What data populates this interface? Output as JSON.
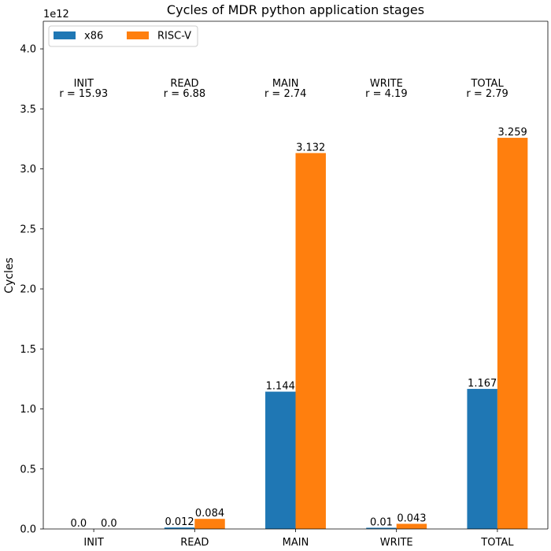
{
  "chart_data": {
    "type": "bar",
    "title": "Cycles of MDR python application stages",
    "xlabel": "",
    "ylabel": "Cycles",
    "y_scale_label": "1e12",
    "y_scale": 1000000000000.0,
    "ylim": [
      0,
      4.23
    ],
    "yticks": [
      0.0,
      0.5,
      1.0,
      1.5,
      2.0,
      2.5,
      3.0,
      3.5,
      4.0
    ],
    "ytick_labels": [
      "0.0",
      "0.5",
      "1.0",
      "1.5",
      "2.0",
      "2.5",
      "3.0",
      "3.5",
      "4.0"
    ],
    "categories": [
      "INIT",
      "READ",
      "MAIN",
      "WRITE",
      "TOTAL"
    ],
    "series": [
      {
        "name": "x86",
        "color": "#1f77b4",
        "values": [
          0.0,
          0.012,
          1.144,
          0.01,
          1.167
        ],
        "labels": [
          "0.0",
          "0.012",
          "1.144",
          "0.01",
          "1.167"
        ]
      },
      {
        "name": "RISC-V",
        "color": "#ff7f0e",
        "values": [
          0.0,
          0.084,
          3.132,
          0.043,
          3.259
        ],
        "labels": [
          "0.0",
          "0.084",
          "3.132",
          "0.043",
          "3.259"
        ]
      }
    ],
    "annotations": [
      {
        "name": "INIT",
        "ratio": "r = 15.93"
      },
      {
        "name": "READ",
        "ratio": "r = 6.88"
      },
      {
        "name": "MAIN",
        "ratio": "r = 2.74"
      },
      {
        "name": "WRITE",
        "ratio": "r = 4.19"
      },
      {
        "name": "TOTAL",
        "ratio": "r = 2.79"
      }
    ],
    "legend_position": "top-left",
    "legend_columns": 2,
    "grid": false
  }
}
